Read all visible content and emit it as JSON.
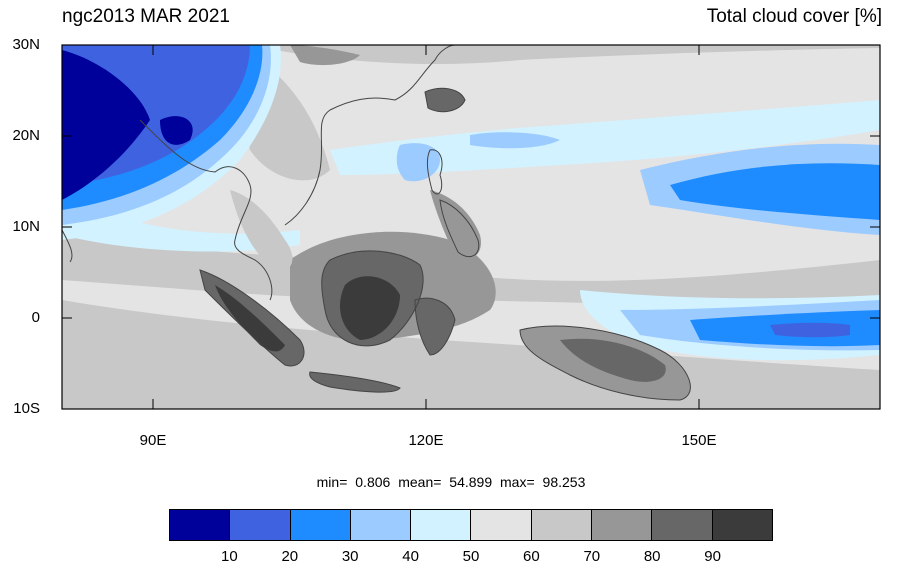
{
  "title_left": "ngc2013 MAR 2021",
  "title_right": "Total cloud cover [%]",
  "lat_labels": [
    "30N",
    "20N",
    "10N",
    "0",
    "10S"
  ],
  "lon_labels": [
    "90E",
    "120E",
    "150E"
  ],
  "stats": {
    "min_label": "min=",
    "min": "0.806",
    "mean_label": "mean=",
    "mean": "54.899",
    "max_label": "max=",
    "max": "98.253"
  },
  "colorbar": {
    "colors": [
      "#00009a",
      "#3f63e0",
      "#1e8cff",
      "#9ccbff",
      "#d2f2ff",
      "#e4e4e4",
      "#c8c8c8",
      "#979797",
      "#676767",
      "#3b3b3b"
    ],
    "labels": [
      "10",
      "20",
      "30",
      "40",
      "50",
      "60",
      "70",
      "80",
      "90"
    ]
  }
}
